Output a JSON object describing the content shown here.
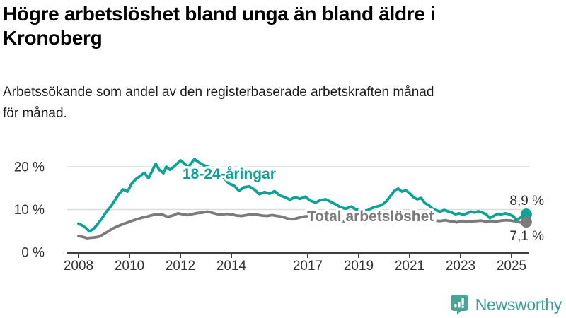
{
  "header": {
    "title_line1": "Högre arbetslöshet bland unga än bland äldre i",
    "title_line2": "Kronoberg",
    "subtitle_line1": "Arbetssökande som andel av den registerbaserade arbetskraften månad",
    "subtitle_line2": "för månad."
  },
  "footer": {
    "logo_text": "Newsworthy"
  },
  "colors": {
    "youth": "#0ba396",
    "total": "#7b7b7b",
    "grid": "#dcdcdc",
    "axis": "#3f3f3f",
    "tick_text": "#333333",
    "logo_icon": "#47a496",
    "logo_text": "#3da295"
  },
  "chart_data": {
    "type": "line",
    "title": "Högre arbetslöshet bland unga än bland äldre i Kronoberg",
    "subtitle": "Arbetssökande som andel av den registerbaserade arbetskraften månad för månad.",
    "unit": "%",
    "grid": true,
    "x_axis": {
      "ticks": [
        2008,
        2010,
        2012,
        2014,
        2017,
        2019,
        2021,
        2023,
        2025
      ],
      "labels": [
        "2008",
        "2010",
        "2012",
        "2014",
        "2017",
        "2019",
        "2021",
        "2023",
        "2025"
      ],
      "range": [
        2008,
        2025.75
      ]
    },
    "y_axis": {
      "ticks": [
        0,
        10,
        20
      ],
      "labels": [
        "0 %",
        "10 %",
        "20 %"
      ],
      "range": [
        0,
        22.5
      ]
    },
    "series": [
      {
        "id": "youth",
        "name": "18-24-åringar",
        "end_value": 8.9,
        "end_label": "8,9 %",
        "points": [
          [
            2008.0,
            6.7
          ],
          [
            2008.17,
            6.2
          ],
          [
            2008.33,
            5.5
          ],
          [
            2008.42,
            4.9
          ],
          [
            2008.58,
            5.4
          ],
          [
            2008.75,
            6.6
          ],
          [
            2008.92,
            7.9
          ],
          [
            2009.08,
            9.4
          ],
          [
            2009.25,
            10.6
          ],
          [
            2009.42,
            12.1
          ],
          [
            2009.58,
            13.6
          ],
          [
            2009.75,
            14.7
          ],
          [
            2009.92,
            14.2
          ],
          [
            2010.08,
            16.0
          ],
          [
            2010.25,
            17.1
          ],
          [
            2010.42,
            17.8
          ],
          [
            2010.58,
            18.6
          ],
          [
            2010.75,
            17.3
          ],
          [
            2010.92,
            19.4
          ],
          [
            2011.03,
            20.7
          ],
          [
            2011.17,
            19.3
          ],
          [
            2011.33,
            18.5
          ],
          [
            2011.45,
            20.0
          ],
          [
            2011.58,
            19.3
          ],
          [
            2011.7,
            19.8
          ],
          [
            2011.85,
            20.6
          ],
          [
            2012.0,
            21.5
          ],
          [
            2012.15,
            20.8
          ],
          [
            2012.3,
            19.9
          ],
          [
            2012.45,
            21.0
          ],
          [
            2012.55,
            21.8
          ],
          [
            2012.7,
            21.1
          ],
          [
            2012.9,
            20.4
          ],
          [
            2013.1,
            20.0
          ],
          [
            2013.3,
            19.2
          ],
          [
            2013.5,
            18.8
          ],
          [
            2013.7,
            17.4
          ],
          [
            2013.9,
            16.1
          ],
          [
            2014.1,
            15.6
          ],
          [
            2014.3,
            14.4
          ],
          [
            2014.5,
            15.2
          ],
          [
            2014.7,
            15.4
          ],
          [
            2014.9,
            14.7
          ],
          [
            2015.1,
            13.6
          ],
          [
            2015.3,
            14.1
          ],
          [
            2015.5,
            13.7
          ],
          [
            2015.7,
            14.3
          ],
          [
            2015.9,
            13.3
          ],
          [
            2016.1,
            12.9
          ],
          [
            2016.3,
            12.3
          ],
          [
            2016.5,
            12.9
          ],
          [
            2016.7,
            12.5
          ],
          [
            2016.9,
            13.0
          ],
          [
            2017.1,
            12.1
          ],
          [
            2017.3,
            11.6
          ],
          [
            2017.5,
            12.2
          ],
          [
            2017.7,
            12.4
          ],
          [
            2017.9,
            11.8
          ],
          [
            2018.1,
            11.2
          ],
          [
            2018.3,
            10.5
          ],
          [
            2018.5,
            10.2
          ],
          [
            2018.7,
            10.7
          ],
          [
            2018.9,
            10.0
          ],
          [
            2019.1,
            9.9
          ],
          [
            2019.3,
            9.7
          ],
          [
            2019.5,
            10.3
          ],
          [
            2019.7,
            10.7
          ],
          [
            2019.9,
            11.0
          ],
          [
            2020.1,
            12.0
          ],
          [
            2020.25,
            13.2
          ],
          [
            2020.4,
            14.4
          ],
          [
            2020.55,
            14.9
          ],
          [
            2020.7,
            14.2
          ],
          [
            2020.85,
            14.5
          ],
          [
            2021.0,
            13.8
          ],
          [
            2021.15,
            12.9
          ],
          [
            2021.3,
            12.4
          ],
          [
            2021.45,
            12.7
          ],
          [
            2021.6,
            11.5
          ],
          [
            2021.75,
            11.0
          ],
          [
            2021.9,
            10.2
          ],
          [
            2022.05,
            9.8
          ],
          [
            2022.2,
            9.5
          ],
          [
            2022.35,
            9.9
          ],
          [
            2022.5,
            9.6
          ],
          [
            2022.65,
            9.3
          ],
          [
            2022.8,
            8.9
          ],
          [
            2022.95,
            9.1
          ],
          [
            2023.1,
            8.8
          ],
          [
            2023.25,
            9.1
          ],
          [
            2023.4,
            9.5
          ],
          [
            2023.55,
            9.3
          ],
          [
            2023.7,
            9.6
          ],
          [
            2023.85,
            9.3
          ],
          [
            2024.0,
            8.9
          ],
          [
            2024.15,
            8.0
          ],
          [
            2024.3,
            8.5
          ],
          [
            2024.45,
            9.0
          ],
          [
            2024.6,
            8.9
          ],
          [
            2024.75,
            9.1
          ],
          [
            2024.9,
            8.9
          ],
          [
            2025.05,
            8.5
          ],
          [
            2025.2,
            7.6
          ],
          [
            2025.35,
            8.1
          ],
          [
            2025.45,
            8.5
          ],
          [
            2025.58,
            8.9
          ]
        ]
      },
      {
        "id": "total",
        "name": "Total arbetslöshet",
        "end_value": 7.1,
        "end_label": "7,1 %",
        "points": [
          [
            2008.0,
            3.8
          ],
          [
            2008.17,
            3.6
          ],
          [
            2008.33,
            3.3
          ],
          [
            2008.5,
            3.4
          ],
          [
            2008.67,
            3.5
          ],
          [
            2008.83,
            3.7
          ],
          [
            2009.0,
            4.3
          ],
          [
            2009.17,
            4.9
          ],
          [
            2009.33,
            5.5
          ],
          [
            2009.5,
            6.0
          ],
          [
            2009.67,
            6.4
          ],
          [
            2009.83,
            6.8
          ],
          [
            2010.0,
            7.1
          ],
          [
            2010.17,
            7.5
          ],
          [
            2010.33,
            7.8
          ],
          [
            2010.5,
            8.1
          ],
          [
            2010.67,
            8.3
          ],
          [
            2010.83,
            8.6
          ],
          [
            2011.0,
            8.8
          ],
          [
            2011.25,
            8.9
          ],
          [
            2011.5,
            8.3
          ],
          [
            2011.7,
            8.6
          ],
          [
            2011.9,
            9.1
          ],
          [
            2012.1,
            8.9
          ],
          [
            2012.3,
            8.7
          ],
          [
            2012.5,
            9.0
          ],
          [
            2012.7,
            9.2
          ],
          [
            2012.9,
            9.3
          ],
          [
            2013.05,
            9.5
          ],
          [
            2013.2,
            9.3
          ],
          [
            2013.4,
            9.0
          ],
          [
            2013.6,
            8.8
          ],
          [
            2013.8,
            9.0
          ],
          [
            2014.0,
            8.9
          ],
          [
            2014.2,
            8.6
          ],
          [
            2014.4,
            8.5
          ],
          [
            2014.6,
            8.7
          ],
          [
            2014.8,
            8.9
          ],
          [
            2015.0,
            8.8
          ],
          [
            2015.2,
            8.6
          ],
          [
            2015.4,
            8.5
          ],
          [
            2015.6,
            8.7
          ],
          [
            2015.8,
            8.5
          ],
          [
            2016.0,
            8.3
          ],
          [
            2016.2,
            7.9
          ],
          [
            2016.4,
            7.7
          ],
          [
            2016.6,
            8.0
          ],
          [
            2016.8,
            8.3
          ],
          [
            2017.0,
            8.5
          ],
          [
            2017.2,
            8.3
          ],
          [
            2017.4,
            8.1
          ],
          [
            2017.6,
            7.9
          ],
          [
            2017.8,
            7.7
          ],
          [
            2018.0,
            7.5
          ],
          [
            2018.2,
            7.3
          ],
          [
            2018.4,
            7.2
          ],
          [
            2018.6,
            7.3
          ],
          [
            2018.8,
            7.2
          ],
          [
            2019.0,
            7.1
          ],
          [
            2019.2,
            7.2
          ],
          [
            2019.4,
            7.3
          ],
          [
            2019.6,
            7.4
          ],
          [
            2019.8,
            7.5
          ],
          [
            2020.0,
            7.7
          ],
          [
            2020.2,
            8.4
          ],
          [
            2020.4,
            9.2
          ],
          [
            2020.6,
            9.6
          ],
          [
            2020.8,
            9.4
          ],
          [
            2021.0,
            9.1
          ],
          [
            2021.2,
            8.8
          ],
          [
            2021.4,
            8.4
          ],
          [
            2021.6,
            8.0
          ],
          [
            2021.8,
            7.7
          ],
          [
            2022.0,
            7.4
          ],
          [
            2022.2,
            7.3
          ],
          [
            2022.4,
            7.5
          ],
          [
            2022.55,
            7.3
          ],
          [
            2022.7,
            7.2
          ],
          [
            2022.85,
            7.0
          ],
          [
            2023.0,
            7.3
          ],
          [
            2023.2,
            7.1
          ],
          [
            2023.4,
            7.2
          ],
          [
            2023.6,
            7.3
          ],
          [
            2023.8,
            7.4
          ],
          [
            2024.0,
            7.2
          ],
          [
            2024.2,
            7.3
          ],
          [
            2024.4,
            7.2
          ],
          [
            2024.6,
            7.4
          ],
          [
            2024.8,
            7.5
          ],
          [
            2025.0,
            7.4
          ],
          [
            2025.2,
            7.2
          ],
          [
            2025.4,
            6.9
          ],
          [
            2025.58,
            7.1
          ]
        ]
      }
    ],
    "legend_position": "inline-labels"
  }
}
